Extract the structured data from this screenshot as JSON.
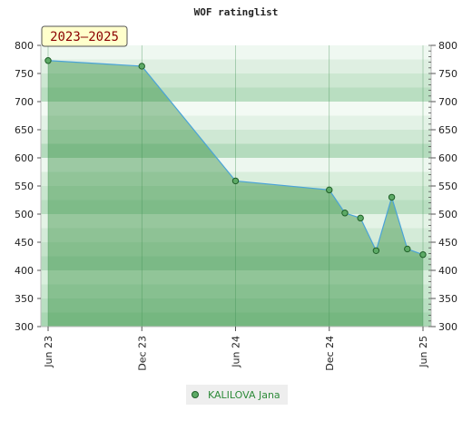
{
  "chart_data": {
    "type": "area",
    "title": "WOF ratinglist",
    "period_label": "2023–2025",
    "xlabel": "",
    "ylabel": "",
    "x_ticks": [
      "Jun 23",
      "Dec 23",
      "Jun 24",
      "Dec 24",
      "Jun 25"
    ],
    "ylim": [
      300,
      800
    ],
    "y_ticks": [
      300,
      350,
      400,
      450,
      500,
      550,
      600,
      650,
      700,
      750,
      800
    ],
    "grid": true,
    "legend_position": "bottom",
    "series": [
      {
        "name": "KALILOVA Jana",
        "color": "#2e8b3a",
        "points": [
          {
            "x": "2023-06",
            "y": 773
          },
          {
            "x": "2023-12",
            "y": 763
          },
          {
            "x": "2024-06",
            "y": 559
          },
          {
            "x": "2024-12",
            "y": 543
          },
          {
            "x": "2025-01",
            "y": 502
          },
          {
            "x": "2025-02",
            "y": 493
          },
          {
            "x": "2025-03",
            "y": 435
          },
          {
            "x": "2025-04",
            "y": 530
          },
          {
            "x": "2025-05",
            "y": 438
          },
          {
            "x": "2025-06",
            "y": 428
          }
        ]
      }
    ]
  }
}
